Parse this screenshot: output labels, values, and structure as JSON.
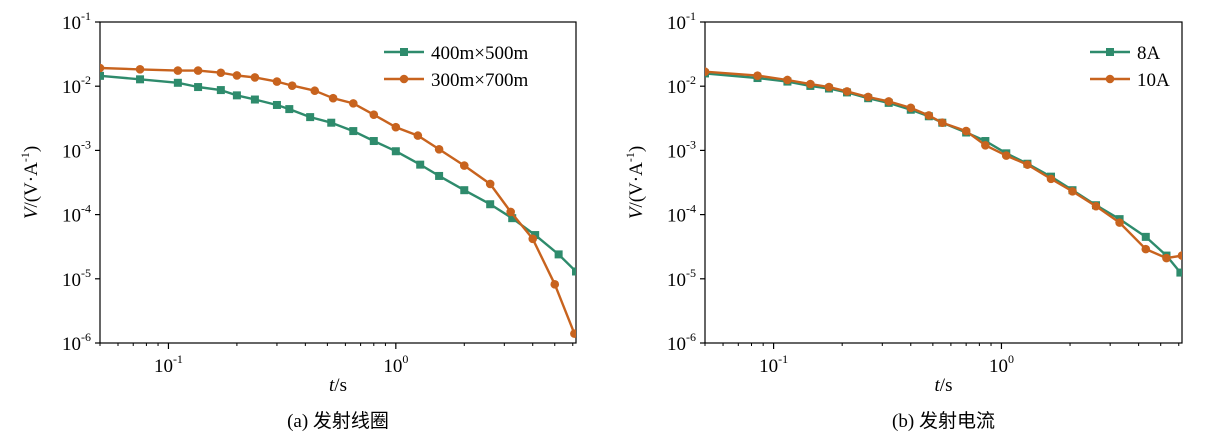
{
  "chart_data": [
    {
      "type": "line",
      "caption": "(a) 发射线圈",
      "xlabel_var": "t",
      "xlabel_unit": "/s",
      "ylabel_var": "V",
      "ylabel_unit": "/(V·A",
      "ylabel_unit_sup": "-1",
      "ylabel_unit_close": ")",
      "xscale": "log",
      "yscale": "log",
      "xlim": [
        0.05,
        6.2
      ],
      "ylim": [
        1e-06,
        0.1
      ],
      "xticks": [
        {
          "base": "10",
          "exp": "-1",
          "value": 0.1
        },
        {
          "base": "10",
          "exp": "0",
          "value": 1
        }
      ],
      "yticks": [
        {
          "base": "10",
          "exp": "-1",
          "value": 0.1
        },
        {
          "base": "10",
          "exp": "-2",
          "value": 0.01
        },
        {
          "base": "10",
          "exp": "-3",
          "value": 0.001
        },
        {
          "base": "10",
          "exp": "-4",
          "value": 0.0001
        },
        {
          "base": "10",
          "exp": "-5",
          "value": 1e-05
        },
        {
          "base": "10",
          "exp": "-6",
          "value": 1e-06
        }
      ],
      "legend_position": "top-right",
      "grid": false,
      "series": [
        {
          "name": "400m×500m",
          "marker": "square",
          "color": "#2e8b6c",
          "x": [
            0.05,
            0.075,
            0.11,
            0.135,
            0.17,
            0.2,
            0.24,
            0.3,
            0.34,
            0.42,
            0.52,
            0.65,
            0.8,
            1.0,
            1.28,
            1.55,
            2.0,
            2.6,
            3.25,
            4.1,
            5.2,
            6.2
          ],
          "y": [
            0.0145,
            0.0128,
            0.0113,
            0.0097,
            0.0087,
            0.0072,
            0.0062,
            0.0051,
            0.0044,
            0.0033,
            0.0027,
            0.002,
            0.0014,
            0.00097,
            0.0006,
            0.0004,
            0.00024,
            0.000145,
            8.8e-05,
            4.8e-05,
            2.4e-05,
            1.3e-05
          ]
        },
        {
          "name": "300m×700m",
          "marker": "circle",
          "color": "#c8631e",
          "x": [
            0.05,
            0.075,
            0.11,
            0.135,
            0.17,
            0.2,
            0.24,
            0.3,
            0.35,
            0.44,
            0.53,
            0.65,
            0.8,
            1.0,
            1.25,
            1.55,
            2.0,
            2.6,
            3.2,
            4.0,
            5.0,
            6.1
          ],
          "y": [
            0.0192,
            0.0183,
            0.0175,
            0.0175,
            0.0162,
            0.0147,
            0.0137,
            0.0118,
            0.0102,
            0.0085,
            0.0065,
            0.0054,
            0.0036,
            0.0023,
            0.0017,
            0.00104,
            0.00058,
            0.0003,
            0.00011,
            4.2e-05,
            8.2e-06,
            1.4e-06
          ]
        }
      ]
    },
    {
      "type": "line",
      "caption": "(b) 发射电流",
      "xlabel_var": "t",
      "xlabel_unit": "/s",
      "ylabel_var": "V",
      "ylabel_unit": "/(V·A",
      "ylabel_unit_sup": "-1",
      "ylabel_unit_close": ")",
      "xscale": "log",
      "yscale": "log",
      "xlim": [
        0.05,
        6.2
      ],
      "ylim": [
        1e-06,
        0.1
      ],
      "xticks": [
        {
          "base": "10",
          "exp": "-1",
          "value": 0.1
        },
        {
          "base": "10",
          "exp": "0",
          "value": 1
        }
      ],
      "yticks": [
        {
          "base": "10",
          "exp": "-1",
          "value": 0.1
        },
        {
          "base": "10",
          "exp": "-2",
          "value": 0.01
        },
        {
          "base": "10",
          "exp": "-3",
          "value": 0.001
        },
        {
          "base": "10",
          "exp": "-4",
          "value": 0.0001
        },
        {
          "base": "10",
          "exp": "-5",
          "value": 1e-05
        },
        {
          "base": "10",
          "exp": "-6",
          "value": 1e-06
        }
      ],
      "legend_position": "top-right",
      "grid": false,
      "series": [
        {
          "name": "8A",
          "marker": "square",
          "color": "#2e8b6c",
          "x": [
            0.05,
            0.085,
            0.115,
            0.145,
            0.175,
            0.21,
            0.26,
            0.32,
            0.4,
            0.48,
            0.55,
            0.7,
            0.85,
            1.05,
            1.3,
            1.65,
            2.05,
            2.6,
            3.3,
            4.3,
            5.3,
            6.1
          ],
          "y": [
            0.0158,
            0.0134,
            0.0118,
            0.0101,
            0.0092,
            0.008,
            0.0065,
            0.0055,
            0.0043,
            0.0034,
            0.0027,
            0.0019,
            0.0014,
            0.0009,
            0.00062,
            0.00039,
            0.00024,
            0.00014,
            8.5e-05,
            4.5e-05,
            2.3e-05,
            1.25e-05
          ]
        },
        {
          "name": "10A",
          "marker": "circle",
          "color": "#c8631e",
          "x": [
            0.05,
            0.085,
            0.115,
            0.145,
            0.175,
            0.21,
            0.26,
            0.32,
            0.4,
            0.48,
            0.55,
            0.7,
            0.85,
            1.05,
            1.3,
            1.65,
            2.05,
            2.6,
            3.3,
            4.3,
            5.3,
            6.2
          ],
          "y": [
            0.0168,
            0.0146,
            0.0125,
            0.0108,
            0.0097,
            0.0083,
            0.0068,
            0.0058,
            0.0046,
            0.0035,
            0.0027,
            0.002,
            0.0012,
            0.00083,
            0.0006,
            0.00036,
            0.00023,
            0.000135,
            7.5e-05,
            2.9e-05,
            2.1e-05,
            2.3e-05
          ]
        }
      ]
    }
  ]
}
